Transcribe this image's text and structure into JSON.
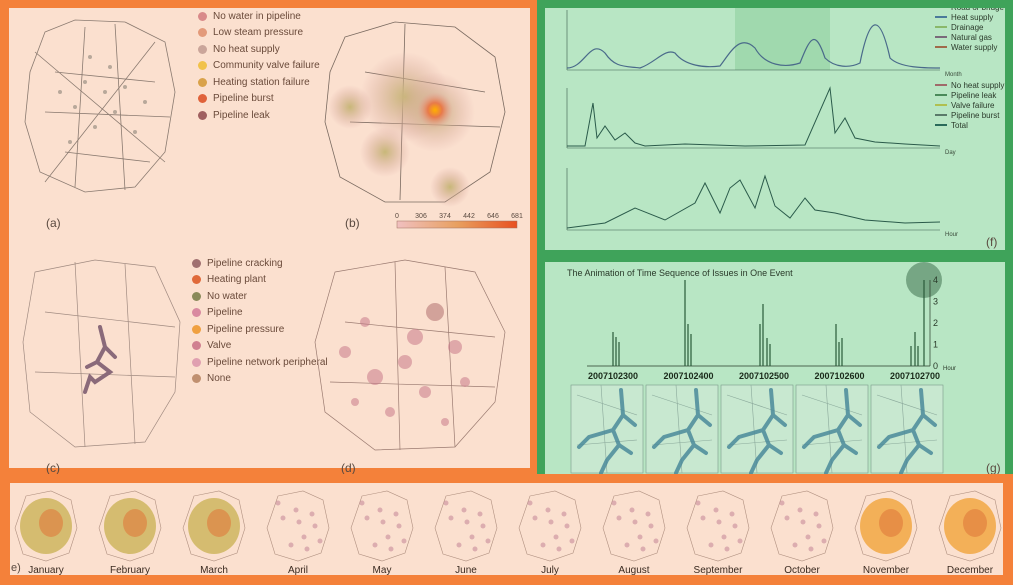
{
  "panels": {
    "a": "(a)",
    "b": "(b)",
    "c": "(c)",
    "d": "(d)",
    "e": "e)",
    "f": "(f)",
    "g": "(g)"
  },
  "legend_top": [
    {
      "label": "No water in pipeline",
      "color": "#d98a8a"
    },
    {
      "label": "Low steam pressure",
      "color": "#e39a7a"
    },
    {
      "label": "No heat supply",
      "color": "#caa59a"
    },
    {
      "label": "Community valve failure",
      "color": "#f1c24a"
    },
    {
      "label": "Heating station failure",
      "color": "#d9a24a"
    },
    {
      "label": "Pipeline burst",
      "color": "#e0623a"
    },
    {
      "label": "Pipeline leak",
      "color": "#a06060"
    }
  ],
  "legend_bottom": [
    {
      "label": "Pipeline cracking",
      "color": "#a07070"
    },
    {
      "label": "Heating plant",
      "color": "#e06a3a"
    },
    {
      "label": "No water",
      "color": "#8a8a5a"
    },
    {
      "label": "Pipeline",
      "color": "#d98aa0"
    },
    {
      "label": "Pipeline pressure",
      "color": "#f0a040"
    },
    {
      "label": "Valve",
      "color": "#d08090"
    },
    {
      "label": "Pipeline network peripheral",
      "color": "#e0a0b0"
    },
    {
      "label": "None",
      "color": "#c09070"
    }
  ],
  "colorbar_ticks": [
    "0",
    "306",
    "374",
    "442",
    "646",
    "681"
  ],
  "months": [
    "January",
    "February",
    "March",
    "April",
    "May",
    "June",
    "July",
    "August",
    "September",
    "October",
    "November",
    "December"
  ],
  "chart_data": [
    {
      "type": "line",
      "xlabel": "Month",
      "legend": [
        "Road or bridge",
        "Heat supply",
        "Drainage",
        "Natural gas",
        "Water supply"
      ],
      "series_colors": [
        "#6a8aa0",
        "#4a7a9a",
        "#8ab86a",
        "#7a6a7a",
        "#a06a4a"
      ]
    },
    {
      "type": "line",
      "xlabel": "Day",
      "legend": [
        "No heat supply",
        "Pipeline leak",
        "Valve failure",
        "Pipeline burst",
        "Total"
      ],
      "series_colors": [
        "#a06a6a",
        "#4a8a5a",
        "#b0c050",
        "#5a7a6a",
        "#2a6a5a"
      ]
    },
    {
      "type": "line",
      "xlabel": "Hour"
    },
    {
      "type": "bar",
      "title": "The Animation of Time Sequence of Issues in One Event",
      "xlabel": "Hour",
      "yticks": [
        "0",
        "1",
        "2",
        "3",
        "4"
      ],
      "categories": [
        "2007102300",
        "2007102400",
        "2007102500",
        "2007102600",
        "2007102700"
      ],
      "ylim": [
        0,
        4
      ]
    }
  ]
}
